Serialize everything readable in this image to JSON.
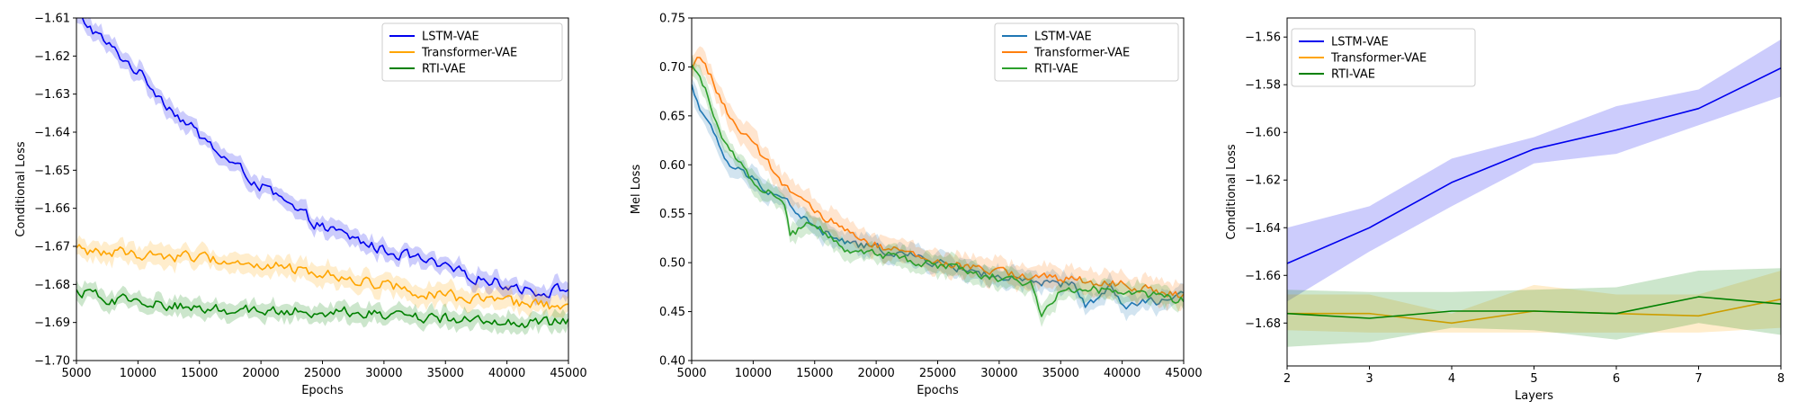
{
  "colors": {
    "lstm_left": "#0000ee",
    "transformer_left": "#ffa500",
    "rti_left": "#008000",
    "lstm_mid": "#1f77b4",
    "transformer_mid": "#ff7f0e",
    "rti_mid": "#2ca02c"
  },
  "chart_data": [
    {
      "id": "conditional-loss-vs-epochs",
      "type": "line",
      "title": "",
      "xlabel": "Epochs",
      "ylabel": "Conditional Loss",
      "xlim": [
        5000,
        45000
      ],
      "ylim": [
        -1.7,
        -1.61
      ],
      "xticks": [
        5000,
        10000,
        15000,
        20000,
        25000,
        30000,
        35000,
        40000,
        45000
      ],
      "xtick_labels": [
        "5000",
        "10000",
        "15000",
        "20000",
        "25000",
        "30000",
        "35000",
        "40000",
        "45000"
      ],
      "yticks": [
        -1.61,
        -1.62,
        -1.63,
        -1.64,
        -1.65,
        -1.66,
        -1.67,
        -1.68,
        -1.69,
        -1.7
      ],
      "ytick_labels": [
        "−1.61",
        "−1.62",
        "−1.63",
        "−1.64",
        "−1.65",
        "−1.66",
        "−1.67",
        "−1.68",
        "−1.69",
        "−1.70"
      ],
      "legend_position": "top-right",
      "noise": 0.0013,
      "series": [
        {
          "name": "LSTM-VAE",
          "color": "lstm_left",
          "band": 0.0022,
          "x": [
            5000,
            6000,
            7500,
            10000,
            12500,
            15000,
            17500,
            20000,
            22500,
            25000,
            27500,
            30000,
            32500,
            35000,
            37500,
            40000,
            42500,
            45000
          ],
          "y": [
            -1.61,
            -1.612,
            -1.617,
            -1.624,
            -1.633,
            -1.641,
            -1.648,
            -1.654,
            -1.66,
            -1.665,
            -1.668,
            -1.671,
            -1.673,
            -1.676,
            -1.678,
            -1.68,
            -1.682,
            -1.681
          ]
        },
        {
          "name": "Transformer-VAE",
          "color": "transformer_left",
          "band": 0.0025,
          "x": [
            5000,
            10000,
            15000,
            20000,
            25000,
            30000,
            35000,
            40000,
            45000
          ],
          "y": [
            -1.671,
            -1.672,
            -1.673,
            -1.675,
            -1.677,
            -1.68,
            -1.683,
            -1.685,
            -1.686
          ]
        },
        {
          "name": "RTI-VAE",
          "color": "rti_left",
          "band": 0.0022,
          "x": [
            5000,
            10000,
            15000,
            20000,
            25000,
            30000,
            35000,
            40000,
            45000
          ],
          "y": [
            -1.682,
            -1.685,
            -1.686,
            -1.687,
            -1.687,
            -1.688,
            -1.689,
            -1.69,
            -1.69
          ]
        }
      ]
    },
    {
      "id": "mel-loss-vs-epochs",
      "type": "line",
      "title": "",
      "xlabel": "Epochs",
      "ylabel": "Mel Loss",
      "xlim": [
        5000,
        45000
      ],
      "ylim": [
        0.4,
        0.75
      ],
      "xticks": [
        5000,
        10000,
        15000,
        20000,
        25000,
        30000,
        35000,
        40000,
        45000
      ],
      "xtick_labels": [
        "5000",
        "10000",
        "15000",
        "20000",
        "25000",
        "30000",
        "35000",
        "40000",
        "45000"
      ],
      "yticks": [
        0.4,
        0.45,
        0.5,
        0.55,
        0.6,
        0.65,
        0.7,
        0.75
      ],
      "ytick_labels": [
        "0.40",
        "0.45",
        "0.50",
        "0.55",
        "0.60",
        "0.65",
        "0.70",
        "0.75"
      ],
      "legend_position": "top-right",
      "noise": 0.004,
      "series": [
        {
          "name": "LSTM-VAE",
          "color": "lstm_mid",
          "band": 0.01,
          "x": [
            5000,
            6000,
            8000,
            10000,
            12500,
            15000,
            17500,
            20000,
            25000,
            30000,
            33000,
            36000,
            37000,
            39000,
            40000,
            45000
          ],
          "y": [
            0.68,
            0.65,
            0.6,
            0.585,
            0.565,
            0.535,
            0.52,
            0.515,
            0.5,
            0.485,
            0.478,
            0.478,
            0.455,
            0.475,
            0.455,
            0.465
          ]
        },
        {
          "name": "Transformer-VAE",
          "color": "transformer_mid",
          "band": 0.012,
          "x": [
            5000,
            5500,
            6000,
            8000,
            10000,
            12500,
            15000,
            17500,
            20000,
            25000,
            30000,
            35000,
            40000,
            45000
          ],
          "y": [
            0.695,
            0.715,
            0.705,
            0.65,
            0.62,
            0.58,
            0.55,
            0.535,
            0.518,
            0.5,
            0.49,
            0.483,
            0.478,
            0.465
          ]
        },
        {
          "name": "RTI-VAE",
          "color": "rti_mid",
          "band": 0.01,
          "x": [
            5000,
            6000,
            8000,
            10000,
            12500,
            13000,
            15000,
            17500,
            20000,
            25000,
            30000,
            32500,
            33500,
            35000,
            40000,
            45000
          ],
          "y": [
            0.7,
            0.68,
            0.615,
            0.585,
            0.56,
            0.53,
            0.54,
            0.515,
            0.51,
            0.497,
            0.485,
            0.48,
            0.445,
            0.475,
            0.47,
            0.462
          ]
        }
      ]
    },
    {
      "id": "conditional-loss-vs-layers",
      "type": "line",
      "title": "",
      "xlabel": "Layers",
      "ylabel": "Conditional Loss",
      "xlim": [
        2,
        8
      ],
      "ylim": [
        -1.698,
        -1.552
      ],
      "xticks": [
        2,
        3,
        4,
        5,
        6,
        7,
        8
      ],
      "xtick_labels": [
        "2",
        "3",
        "4",
        "5",
        "6",
        "7",
        "8"
      ],
      "yticks": [
        -1.56,
        -1.58,
        -1.6,
        -1.62,
        -1.64,
        -1.66,
        -1.68
      ],
      "ytick_labels": [
        "−1.56",
        "−1.58",
        "−1.60",
        "−1.62",
        "−1.64",
        "−1.66",
        "−1.68"
      ],
      "legend_position": "top-left",
      "noise": 0,
      "series": [
        {
          "name": "LSTM-VAE",
          "color": "lstm_left",
          "x": [
            2,
            3,
            4,
            5,
            6,
            7,
            8
          ],
          "y": [
            -1.655,
            -1.64,
            -1.621,
            -1.607,
            -1.599,
            -1.59,
            -1.573
          ],
          "lower": [
            -1.671,
            -1.65,
            -1.631,
            -1.613,
            -1.609,
            -1.597,
            -1.585
          ],
          "upper": [
            -1.64,
            -1.631,
            -1.611,
            -1.602,
            -1.589,
            -1.582,
            -1.561
          ]
        },
        {
          "name": "Transformer-VAE",
          "color": "transformer_left",
          "x": [
            2,
            3,
            4,
            5,
            6,
            7,
            8
          ],
          "y": [
            -1.676,
            -1.676,
            -1.68,
            -1.675,
            -1.676,
            -1.677,
            -1.67
          ],
          "lower": [
            -1.683,
            -1.684,
            -1.684,
            -1.684,
            -1.684,
            -1.684,
            -1.682
          ],
          "upper": [
            -1.668,
            -1.668,
            -1.676,
            -1.664,
            -1.668,
            -1.668,
            -1.658
          ]
        },
        {
          "name": "RTI-VAE",
          "color": "rti_left",
          "x": [
            2,
            3,
            4,
            5,
            6,
            7,
            8
          ],
          "y": [
            -1.676,
            -1.678,
            -1.675,
            -1.675,
            -1.676,
            -1.669,
            -1.672
          ],
          "lower": [
            -1.69,
            -1.688,
            -1.682,
            -1.683,
            -1.687,
            -1.68,
            -1.685
          ],
          "upper": [
            -1.666,
            -1.667,
            -1.667,
            -1.666,
            -1.665,
            -1.658,
            -1.657
          ]
        }
      ]
    }
  ]
}
